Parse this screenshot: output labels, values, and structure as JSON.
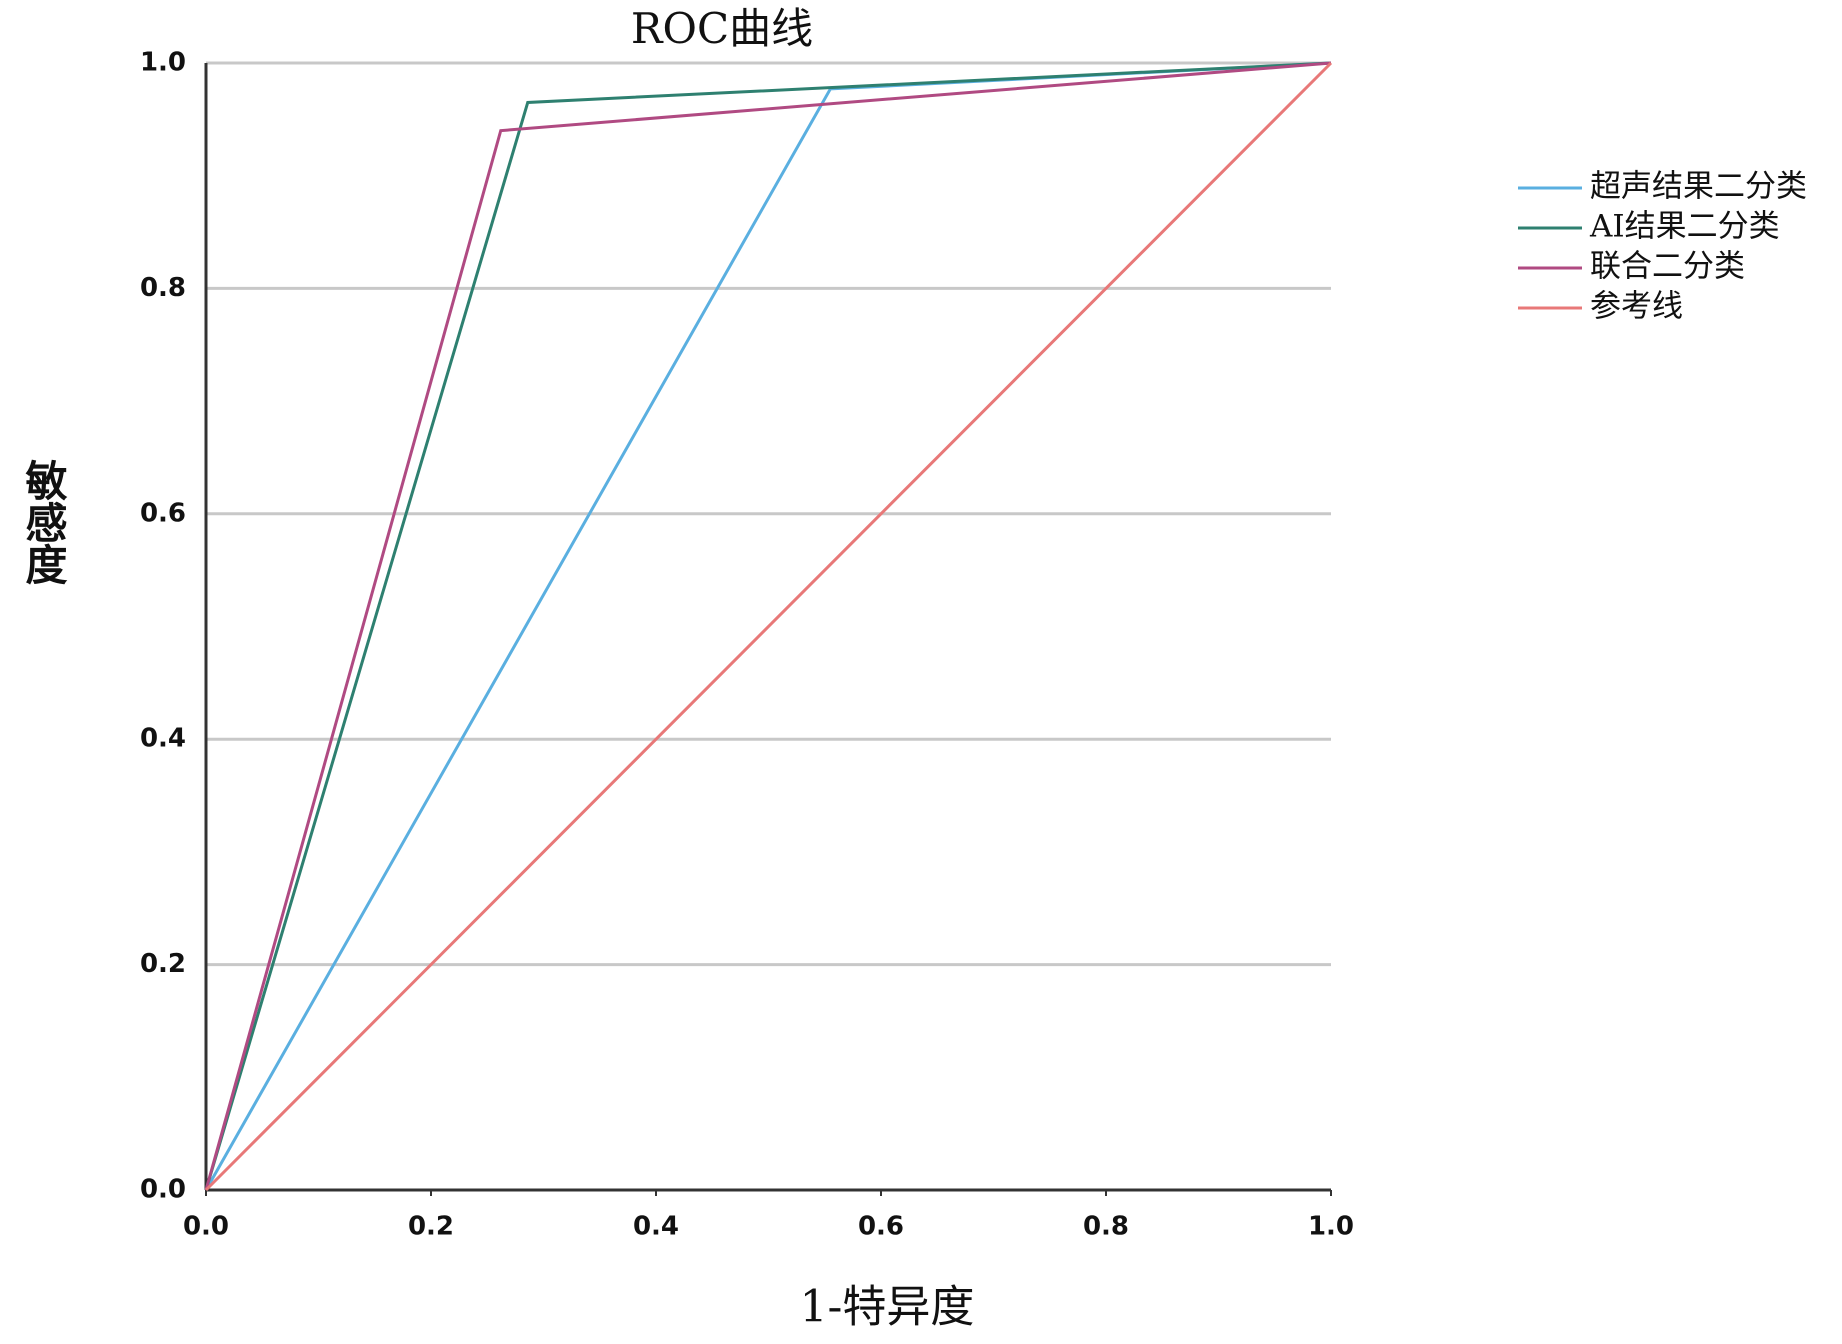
{
  "chart_data": {
    "type": "line",
    "title": "ROC曲线",
    "x_label": "1-特异度",
    "y_label": "敏感度",
    "xlim": [
      0,
      1
    ],
    "ylim": [
      0,
      1
    ],
    "xticks": [
      {
        "value": 0,
        "label": "0.0"
      },
      0.2,
      0.4,
      0.6,
      0.8,
      {
        "value": 1,
        "label": "1.0"
      }
    ],
    "yticks": [
      {
        "value": 0,
        "label": "0.0"
      },
      0.2,
      0.4,
      0.6,
      0.8,
      {
        "value": 1,
        "label": "1.0"
      }
    ],
    "grid": true,
    "legend": "right",
    "series": [
      {
        "name": "超声结果二分类",
        "color": "#5aafe0",
        "x": [
          0,
          0.555,
          1
        ],
        "values": [
          0,
          0.977,
          1
        ]
      },
      {
        "name": "AI结果二分类",
        "color": "#2e8070",
        "x": [
          0,
          0.286,
          1
        ],
        "values": [
          0,
          0.965,
          1
        ]
      },
      {
        "name": "联合二分类",
        "color": "#b04a82",
        "x": [
          0,
          0.262,
          1
        ],
        "values": [
          0,
          0.94,
          1
        ]
      },
      {
        "name": "参考线",
        "color": "#e87878",
        "x": [
          0,
          1
        ],
        "values": [
          0,
          1
        ]
      }
    ]
  }
}
